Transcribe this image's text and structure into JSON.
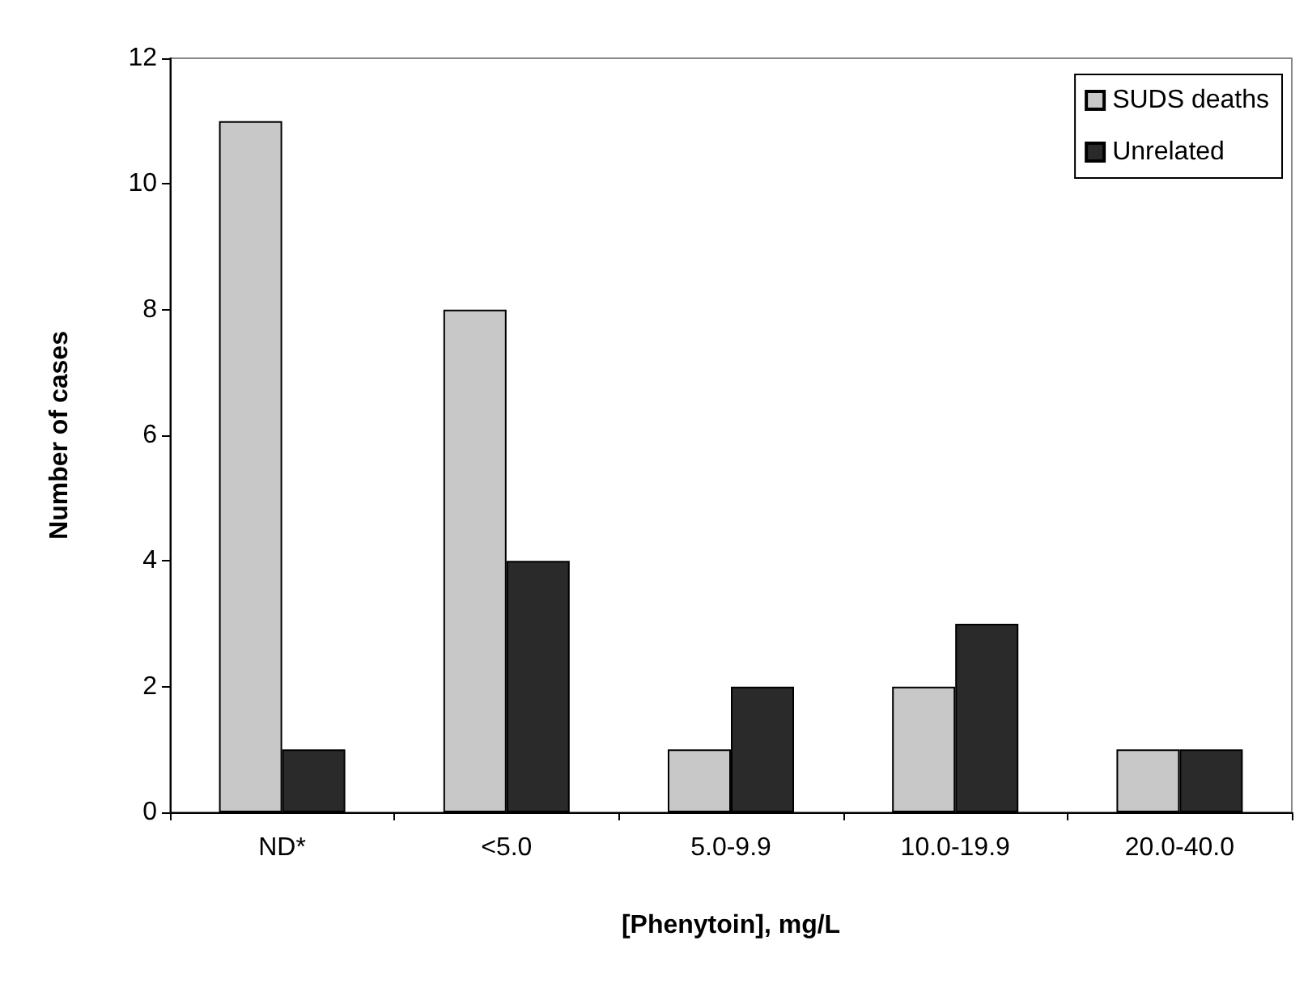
{
  "chart_data": {
    "type": "bar",
    "xlabel": "[Phenytoin], mg/L",
    "ylabel": "Number of cases",
    "categories": [
      "ND*",
      "<5.0",
      "5.0-9.9",
      "10.0-19.9",
      "20.0-40.0"
    ],
    "series": [
      {
        "name": "SUDS deaths",
        "color": "#c8c8c8",
        "values": [
          11,
          8,
          1,
          2,
          1
        ]
      },
      {
        "name": "Unrelated",
        "color": "#2a2a2a",
        "values": [
          1,
          4,
          2,
          3,
          1
        ]
      }
    ],
    "ylim": [
      0,
      12
    ],
    "yticks": [
      0,
      2,
      4,
      6,
      8,
      10,
      12
    ],
    "grid": false,
    "legend": "top right"
  }
}
